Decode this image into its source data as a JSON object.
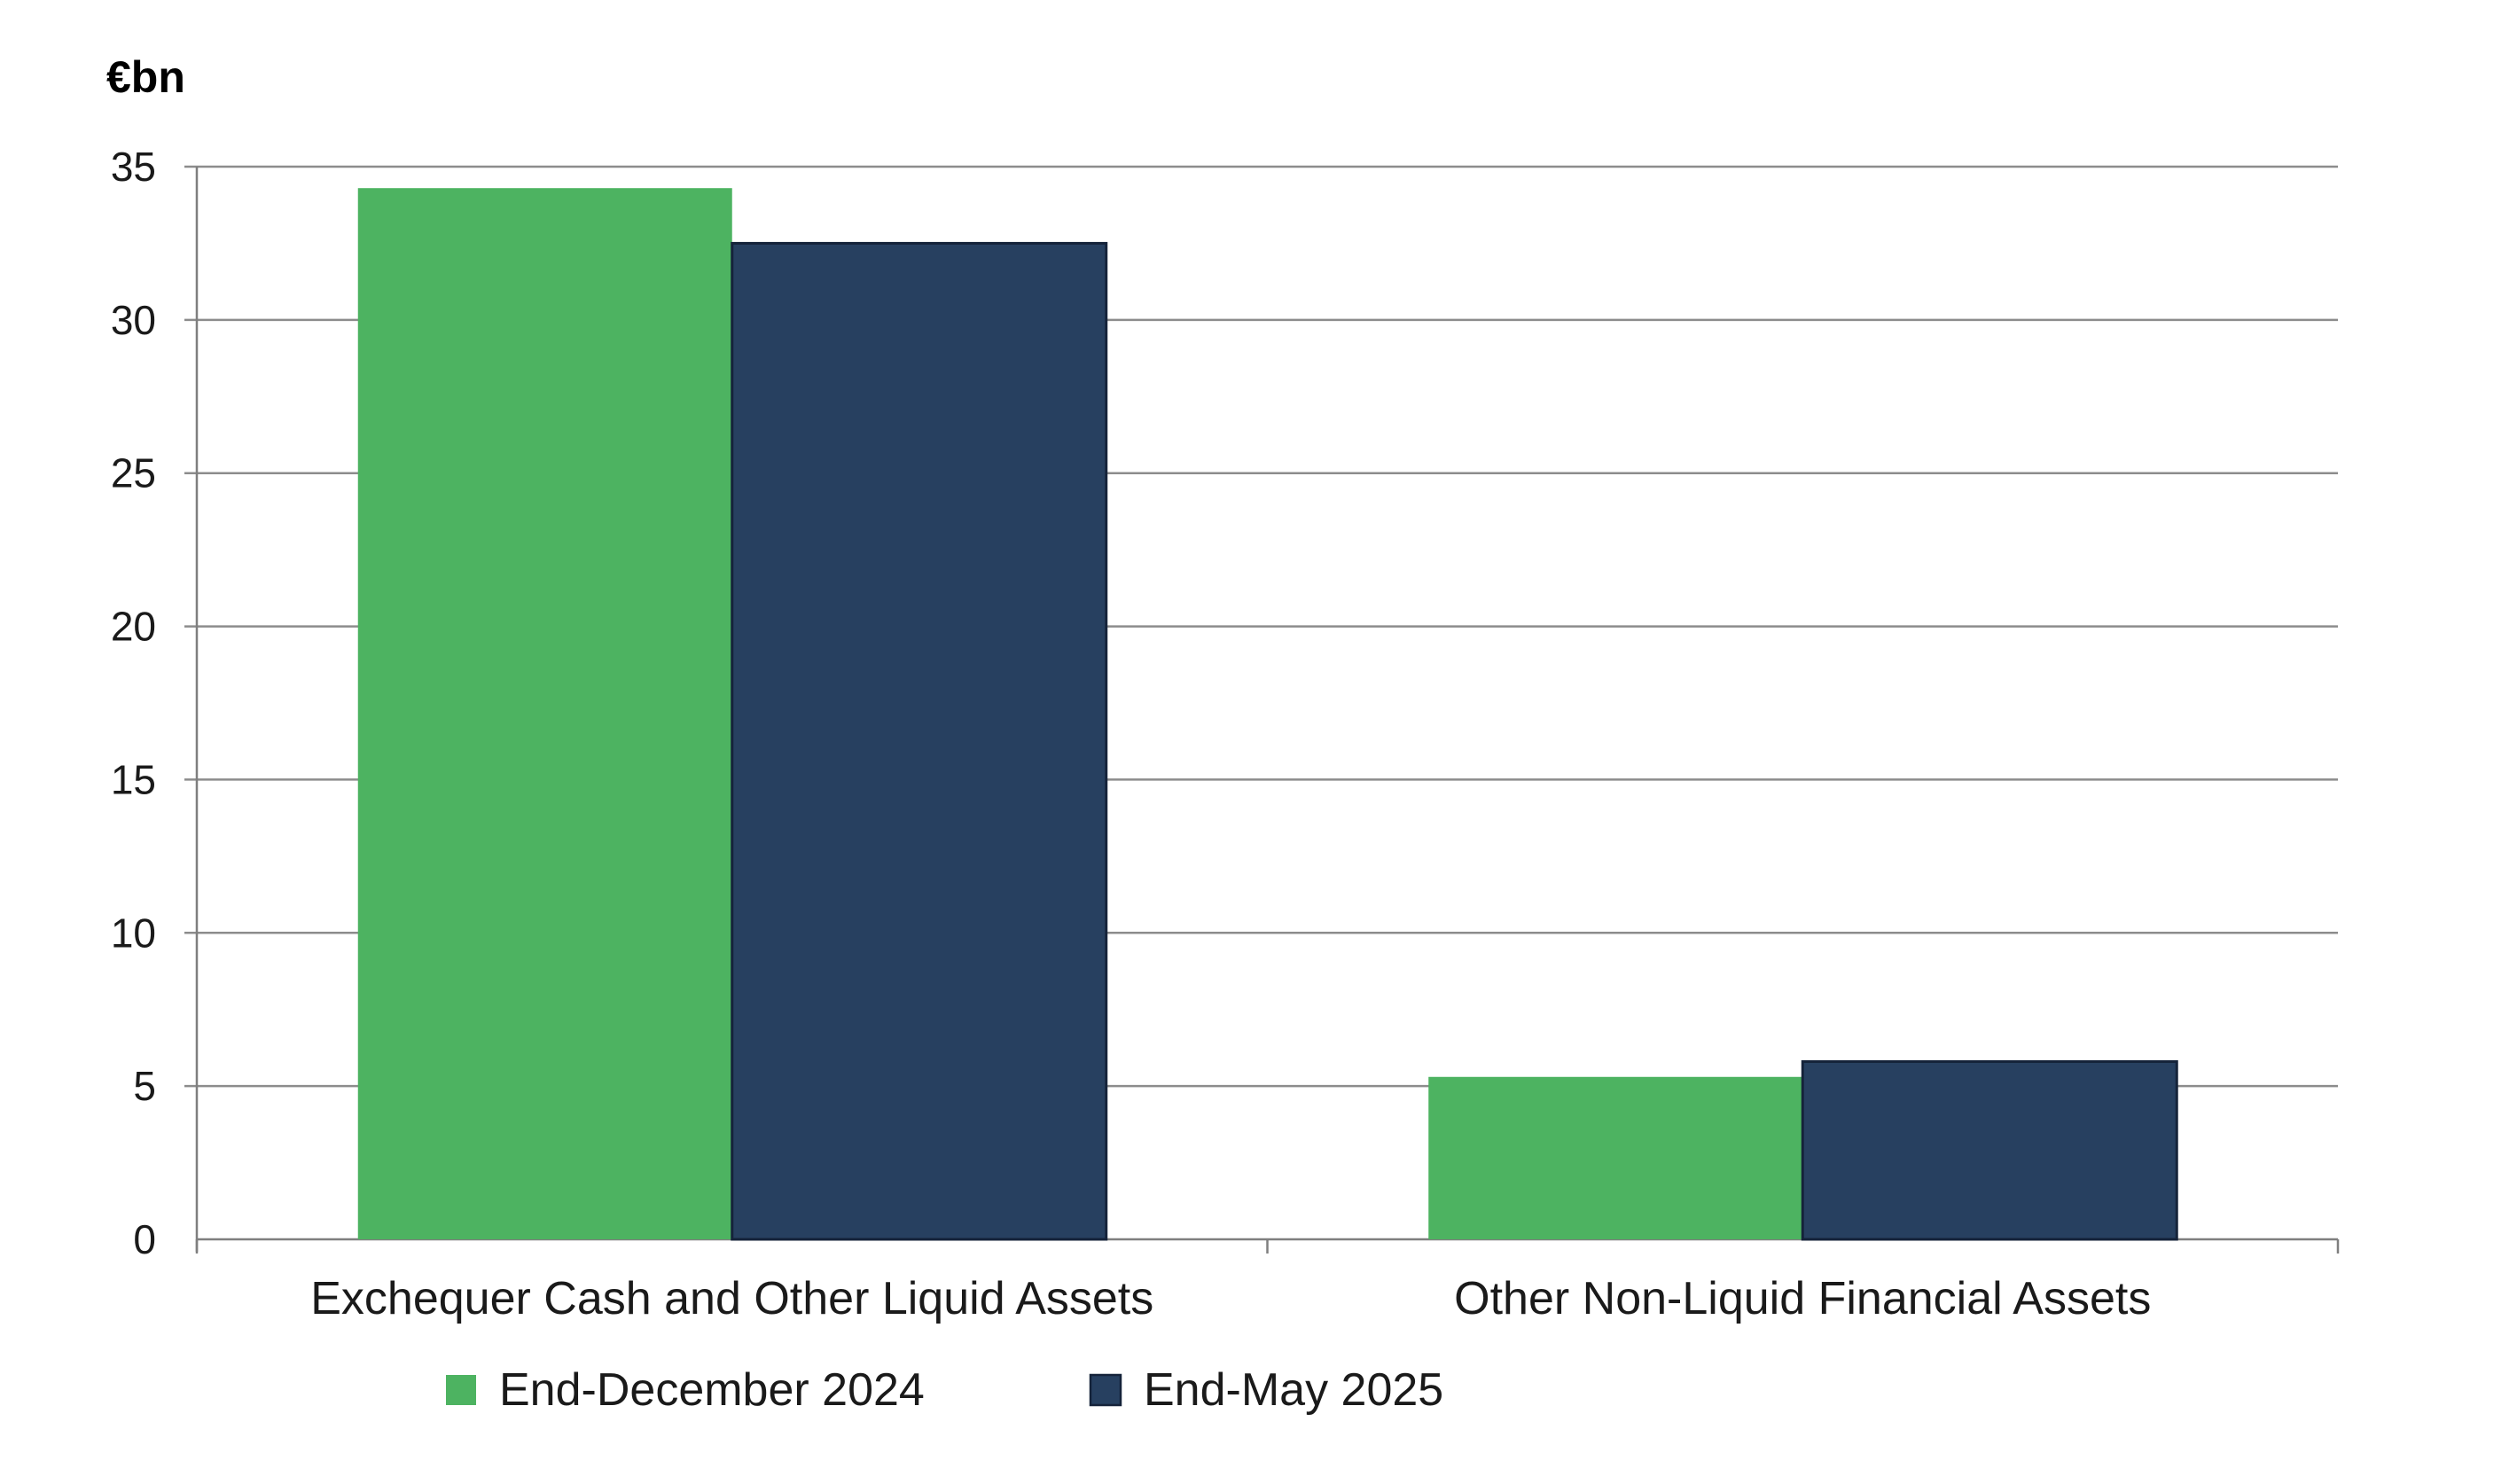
{
  "chart_data": {
    "type": "bar",
    "unit_label": "€bn",
    "categories": [
      "Exchequer Cash and Other Liquid Assets",
      "Other Non-Liquid Financial Assets"
    ],
    "series": [
      {
        "name": "End-December 2024",
        "values": [
          34.3,
          5.3
        ],
        "color": "#4db361"
      },
      {
        "name": "End-May 2025",
        "values": [
          32.5,
          5.8
        ],
        "color": "#274060"
      }
    ],
    "ylim": [
      0,
      35
    ],
    "yticks": [
      0,
      5,
      10,
      15,
      20,
      25,
      30,
      35
    ],
    "grid": true,
    "legend_position": "bottom"
  }
}
